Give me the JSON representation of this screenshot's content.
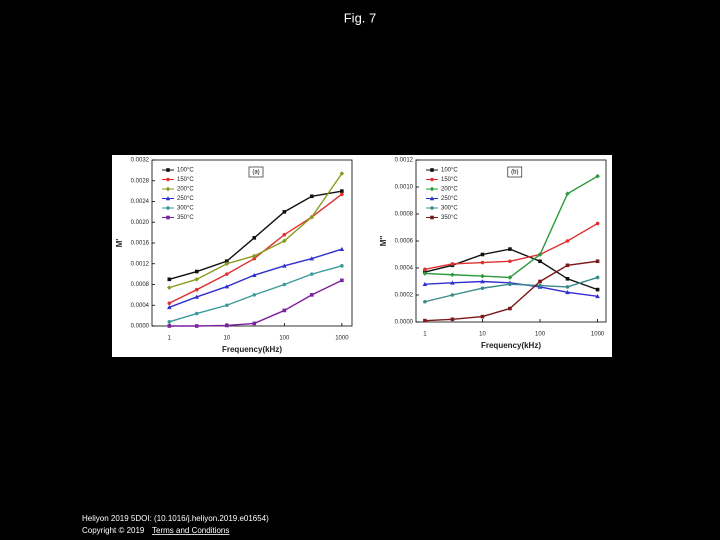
{
  "slide": {
    "title": "Fig. 7",
    "citation": "Heliyon 2019 5DOI: (10.1016/j.heliyon.2019.e01654)",
    "copyright": "Copyright © 2019",
    "link": "Terms and Conditions"
  },
  "chart_data": [
    {
      "type": "line",
      "title": "(a)",
      "x_label": "Frequency(kHz)",
      "y_label": "M'",
      "xlog": true,
      "grid": false,
      "legend": "upper left",
      "x": [
        1,
        3,
        10,
        30,
        100,
        300,
        1000
      ],
      "xlim": [
        0.5,
        1500
      ],
      "xticks": [
        1,
        10,
        100,
        1000
      ],
      "ylim": [
        0,
        0.0032
      ],
      "yticks": [
        {
          "value": 0,
          "label": "0.0000"
        },
        {
          "value": 0.0004,
          "label": "0.0004"
        },
        {
          "value": 0.0008,
          "label": "0.0008"
        },
        {
          "value": 0.0012,
          "label": "0.0012"
        },
        {
          "value": 0.0016,
          "label": "0.0016"
        },
        {
          "value": 0.002,
          "label": "0.0020"
        },
        {
          "value": 0.0024,
          "label": "0.0024"
        },
        {
          "value": 0.0028,
          "label": "0.0028"
        },
        {
          "value": 0.0032,
          "label": "0.0032"
        }
      ],
      "series": [
        {
          "name": "100°C",
          "color": "#111111",
          "values": [
            0.0009,
            0.00105,
            0.00125,
            0.0017,
            0.0022,
            0.0025,
            0.0026
          ]
        },
        {
          "name": "150°C",
          "color": "#e03030",
          "values": [
            0.00044,
            0.0007,
            0.001,
            0.0013,
            0.00176,
            0.0021,
            0.00254
          ]
        },
        {
          "name": "200°C",
          "color": "#8a9a20",
          "values": [
            0.00074,
            0.0009,
            0.0012,
            0.00135,
            0.00164,
            0.0021,
            0.00294
          ]
        },
        {
          "name": "250°C",
          "color": "#3030d0",
          "values": [
            0.00036,
            0.00056,
            0.00076,
            0.00098,
            0.00116,
            0.0013,
            0.00148
          ]
        },
        {
          "name": "300°C",
          "color": "#3a9a9a",
          "values": [
            8e-05,
            0.00024,
            0.0004,
            0.0006,
            0.0008,
            0.001,
            0.00116
          ]
        },
        {
          "name": "350°C",
          "color": "#7a20a0",
          "values": [
            0,
            0,
            1e-05,
            5e-05,
            0.0003,
            0.0006,
            0.00088
          ]
        }
      ]
    },
    {
      "type": "line",
      "title": "(b)",
      "x_label": "Frequency(kHz)",
      "y_label": "M''",
      "xlog": true,
      "grid": false,
      "legend": "upper left",
      "x": [
        1,
        3,
        10,
        30,
        100,
        300,
        1000
      ],
      "xlim": [
        0.7,
        1400
      ],
      "xticks": [
        1,
        10,
        100,
        1000
      ],
      "ylim": [
        0,
        0.0012
      ],
      "yticks": [
        {
          "value": 0,
          "label": "0.0000"
        },
        {
          "value": 0.0002,
          "label": "0.0002"
        },
        {
          "value": 0.0004,
          "label": "0.0004"
        },
        {
          "value": 0.0006,
          "label": "0.0006"
        },
        {
          "value": 0.0008,
          "label": "0.0008"
        },
        {
          "value": 0.001,
          "label": "0.0010"
        },
        {
          "value": 0.0012,
          "label": "0.0012"
        }
      ],
      "series": [
        {
          "name": "100°C",
          "color": "#111111",
          "values": [
            0.00037,
            0.00042,
            0.0005,
            0.00054,
            0.00045,
            0.00032,
            0.00024
          ]
        },
        {
          "name": "150°C",
          "color": "#e03030",
          "values": [
            0.00039,
            0.00043,
            0.00044,
            0.00045,
            0.0005,
            0.0006,
            0.00073
          ]
        },
        {
          "name": "200°C",
          "color": "#2a9a3a",
          "values": [
            0.00036,
            0.00035,
            0.00034,
            0.00033,
            0.0005,
            0.00095,
            0.00108
          ]
        },
        {
          "name": "250°C",
          "color": "#3030d0",
          "values": [
            0.00028,
            0.00029,
            0.0003,
            0.00029,
            0.00026,
            0.00022,
            0.00019
          ]
        },
        {
          "name": "300°C",
          "color": "#3a8a8a",
          "values": [
            0.00015,
            0.0002,
            0.00025,
            0.00028,
            0.00027,
            0.00026,
            0.00033
          ]
        },
        {
          "name": "350°C",
          "color": "#7a1a1a",
          "values": [
            1e-05,
            2e-05,
            4e-05,
            0.0001,
            0.0003,
            0.00042,
            0.00045
          ]
        }
      ]
    }
  ]
}
